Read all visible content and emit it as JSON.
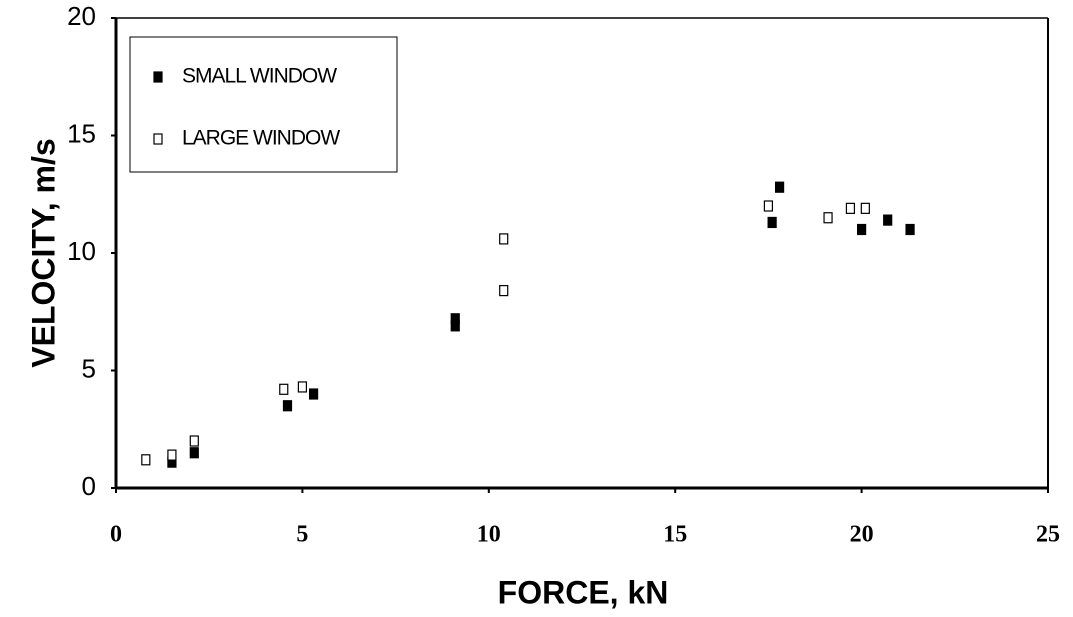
{
  "chart_data": {
    "type": "scatter",
    "xlabel": "FORCE, kN",
    "ylabel": "VELOCITY, m/s",
    "xlim": [
      0,
      25
    ],
    "xticks": [
      0,
      5,
      10,
      15,
      20,
      25
    ],
    "ylim": [
      0,
      20
    ],
    "yticks": [
      0,
      5,
      10,
      15,
      20
    ],
    "legend": "upper left",
    "series": [
      {
        "name": "SMALL WINDOW",
        "color": "#000000",
        "marker": "filled",
        "x": [
          1.5,
          2.1,
          4.6,
          5.3,
          9.1,
          9.1,
          17.6,
          17.8,
          20.0,
          20.7,
          21.3
        ],
        "values": [
          1.1,
          1.5,
          3.5,
          4.0,
          7.2,
          6.9,
          11.3,
          12.8,
          11.0,
          11.4,
          11.0
        ]
      },
      {
        "name": "LARGE WINDOW",
        "color": "#000000",
        "marker": "open",
        "x": [
          0.8,
          1.5,
          2.1,
          4.5,
          5.0,
          10.4,
          10.4,
          17.5,
          19.1,
          19.7,
          20.1
        ],
        "values": [
          1.2,
          1.4,
          2.0,
          4.2,
          4.3,
          10.6,
          8.4,
          12.0,
          11.5,
          11.9,
          11.9
        ]
      }
    ]
  }
}
